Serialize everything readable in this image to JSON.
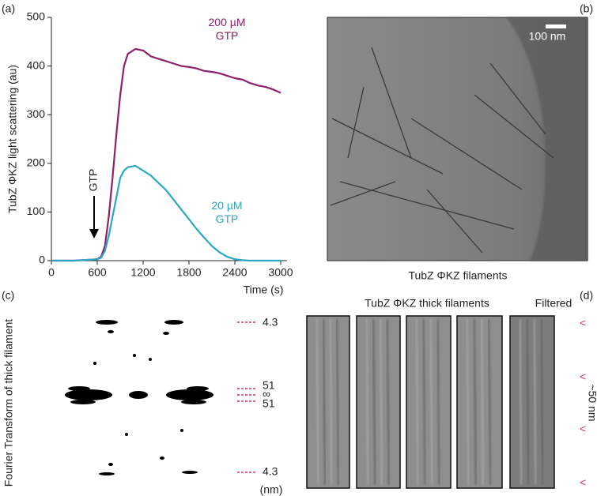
{
  "chart_data": {
    "type": "line",
    "ylabel": "TubZ ΦKZ light scattering (au)",
    "xlabel": "Time (s)",
    "x": [
      0,
      100,
      200,
      300,
      400,
      500,
      600,
      650,
      700,
      750,
      800,
      850,
      900,
      950,
      1000,
      1100,
      1200,
      1300,
      1400,
      1500,
      1600,
      1700,
      1800,
      1900,
      2000,
      2100,
      2200,
      2300,
      2400,
      2500,
      2600,
      2700,
      2800,
      2900,
      3000
    ],
    "series": [
      {
        "name": "200 µM GTP",
        "color": "#8e1f6a",
        "values": [
          0,
          0,
          0,
          0,
          1,
          2,
          3,
          8,
          30,
          90,
          170,
          260,
          340,
          400,
          425,
          435,
          432,
          420,
          415,
          410,
          405,
          400,
          398,
          395,
          390,
          388,
          385,
          380,
          375,
          372,
          365,
          360,
          357,
          352,
          345
        ]
      },
      {
        "name": "20 µM GTP",
        "color": "#2aa7c4",
        "values": [
          0,
          0,
          0,
          0,
          1,
          2,
          3,
          6,
          20,
          50,
          90,
          130,
          170,
          185,
          192,
          195,
          185,
          175,
          160,
          145,
          125,
          105,
          85,
          65,
          47,
          30,
          17,
          8,
          3,
          1,
          0,
          0,
          0,
          0,
          0
        ]
      }
    ],
    "annotation": "GTP",
    "xlim": [
      0,
      3000
    ],
    "xticks": [
      0,
      600,
      1200,
      1800,
      2400,
      3000
    ],
    "ylim": [
      0,
      500
    ],
    "yticks": [
      0,
      100,
      200,
      300,
      400,
      500
    ],
    "grid": false
  },
  "panel_labels": [
    "(a)",
    "(b)",
    "(c)",
    "(d)"
  ],
  "micrograph": {
    "scale_bar": "100 nm",
    "caption": "TubZ ΦKZ filaments"
  },
  "fourier": {
    "axis_label": "Fourier Transform of thick filament",
    "layer_lines": [
      "4.3",
      "51",
      "∞",
      "51",
      "4.3"
    ],
    "unit": "(nm)"
  },
  "filaments": {
    "title": "TubZ ΦKZ thick filaments",
    "filtered": "Filtered",
    "markers": [
      "<",
      "<",
      "<",
      "<"
    ],
    "repeat": "~50 nm"
  }
}
